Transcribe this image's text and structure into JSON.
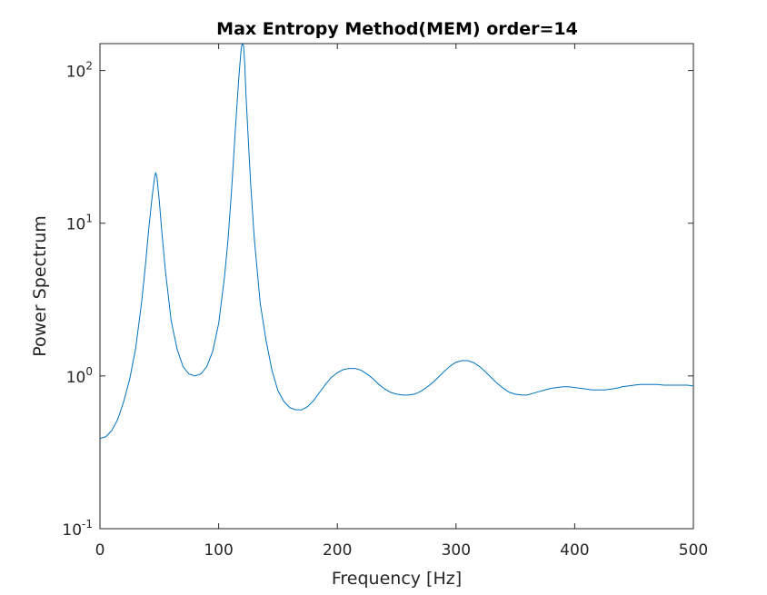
{
  "chart_data": {
    "type": "line",
    "title": "Max Entropy Method(MEM) order=14",
    "xlabel": "Frequency [Hz]",
    "ylabel": "Power Spectrum",
    "xlim": [
      0,
      500
    ],
    "ylim": [
      0.1,
      150
    ],
    "yscale": "log",
    "grid": false,
    "legend": "none",
    "x_ticks": [
      {
        "value": 0,
        "label": "0"
      },
      {
        "value": 100,
        "label": "100"
      },
      {
        "value": 200,
        "label": "200"
      },
      {
        "value": 300,
        "label": "300"
      },
      {
        "value": 400,
        "label": "400"
      },
      {
        "value": 500,
        "label": "500"
      }
    ],
    "y_ticks": [
      {
        "value": 0.1,
        "base": "10",
        "exp": "-1"
      },
      {
        "value": 1,
        "base": "10",
        "exp": "0"
      },
      {
        "value": 10,
        "base": "10",
        "exp": "1"
      },
      {
        "value": 100,
        "base": "10",
        "exp": "2"
      }
    ],
    "series": [
      {
        "color": "#0072BD",
        "x": [
          0,
          5,
          10,
          15,
          20,
          25,
          30,
          35,
          38,
          41,
          44,
          46,
          47,
          48,
          50,
          52,
          55,
          60,
          65,
          70,
          75,
          80,
          85,
          90,
          95,
          100,
          105,
          108,
          111,
          114,
          117,
          119,
          120,
          121,
          122,
          123,
          125,
          127,
          130,
          135,
          140,
          145,
          150,
          155,
          160,
          165,
          170,
          175,
          180,
          185,
          190,
          195,
          200,
          205,
          210,
          215,
          220,
          225,
          230,
          235,
          240,
          245,
          250,
          255,
          260,
          265,
          270,
          275,
          280,
          285,
          290,
          295,
          300,
          305,
          310,
          315,
          320,
          325,
          330,
          335,
          340,
          345,
          350,
          355,
          360,
          365,
          370,
          375,
          380,
          385,
          390,
          395,
          400,
          405,
          410,
          415,
          420,
          425,
          430,
          435,
          440,
          445,
          450,
          455,
          460,
          465,
          470,
          475,
          480,
          485,
          490,
          495,
          500
        ],
        "values": [
          0.39,
          0.4,
          0.44,
          0.52,
          0.68,
          0.95,
          1.5,
          3.0,
          5.0,
          9.0,
          15.0,
          20.0,
          21.5,
          20.0,
          14.0,
          9.0,
          5.0,
          2.3,
          1.5,
          1.15,
          1.03,
          1.0,
          1.03,
          1.15,
          1.45,
          2.2,
          4.5,
          8.0,
          17.0,
          40.0,
          90.0,
          140.0,
          155.0,
          145.0,
          110.0,
          70.0,
          35.0,
          18.0,
          8.0,
          3.0,
          1.7,
          1.08,
          0.8,
          0.68,
          0.62,
          0.6,
          0.6,
          0.63,
          0.69,
          0.78,
          0.88,
          0.98,
          1.05,
          1.1,
          1.12,
          1.12,
          1.09,
          1.03,
          0.96,
          0.88,
          0.82,
          0.78,
          0.76,
          0.75,
          0.75,
          0.76,
          0.79,
          0.84,
          0.9,
          0.98,
          1.07,
          1.16,
          1.23,
          1.26,
          1.26,
          1.22,
          1.15,
          1.06,
          0.97,
          0.89,
          0.83,
          0.78,
          0.76,
          0.75,
          0.75,
          0.77,
          0.79,
          0.81,
          0.83,
          0.84,
          0.85,
          0.85,
          0.84,
          0.83,
          0.82,
          0.81,
          0.81,
          0.81,
          0.82,
          0.83,
          0.85,
          0.86,
          0.87,
          0.88,
          0.88,
          0.88,
          0.88,
          0.87,
          0.87,
          0.87,
          0.87,
          0.87,
          0.86
        ]
      }
    ]
  }
}
